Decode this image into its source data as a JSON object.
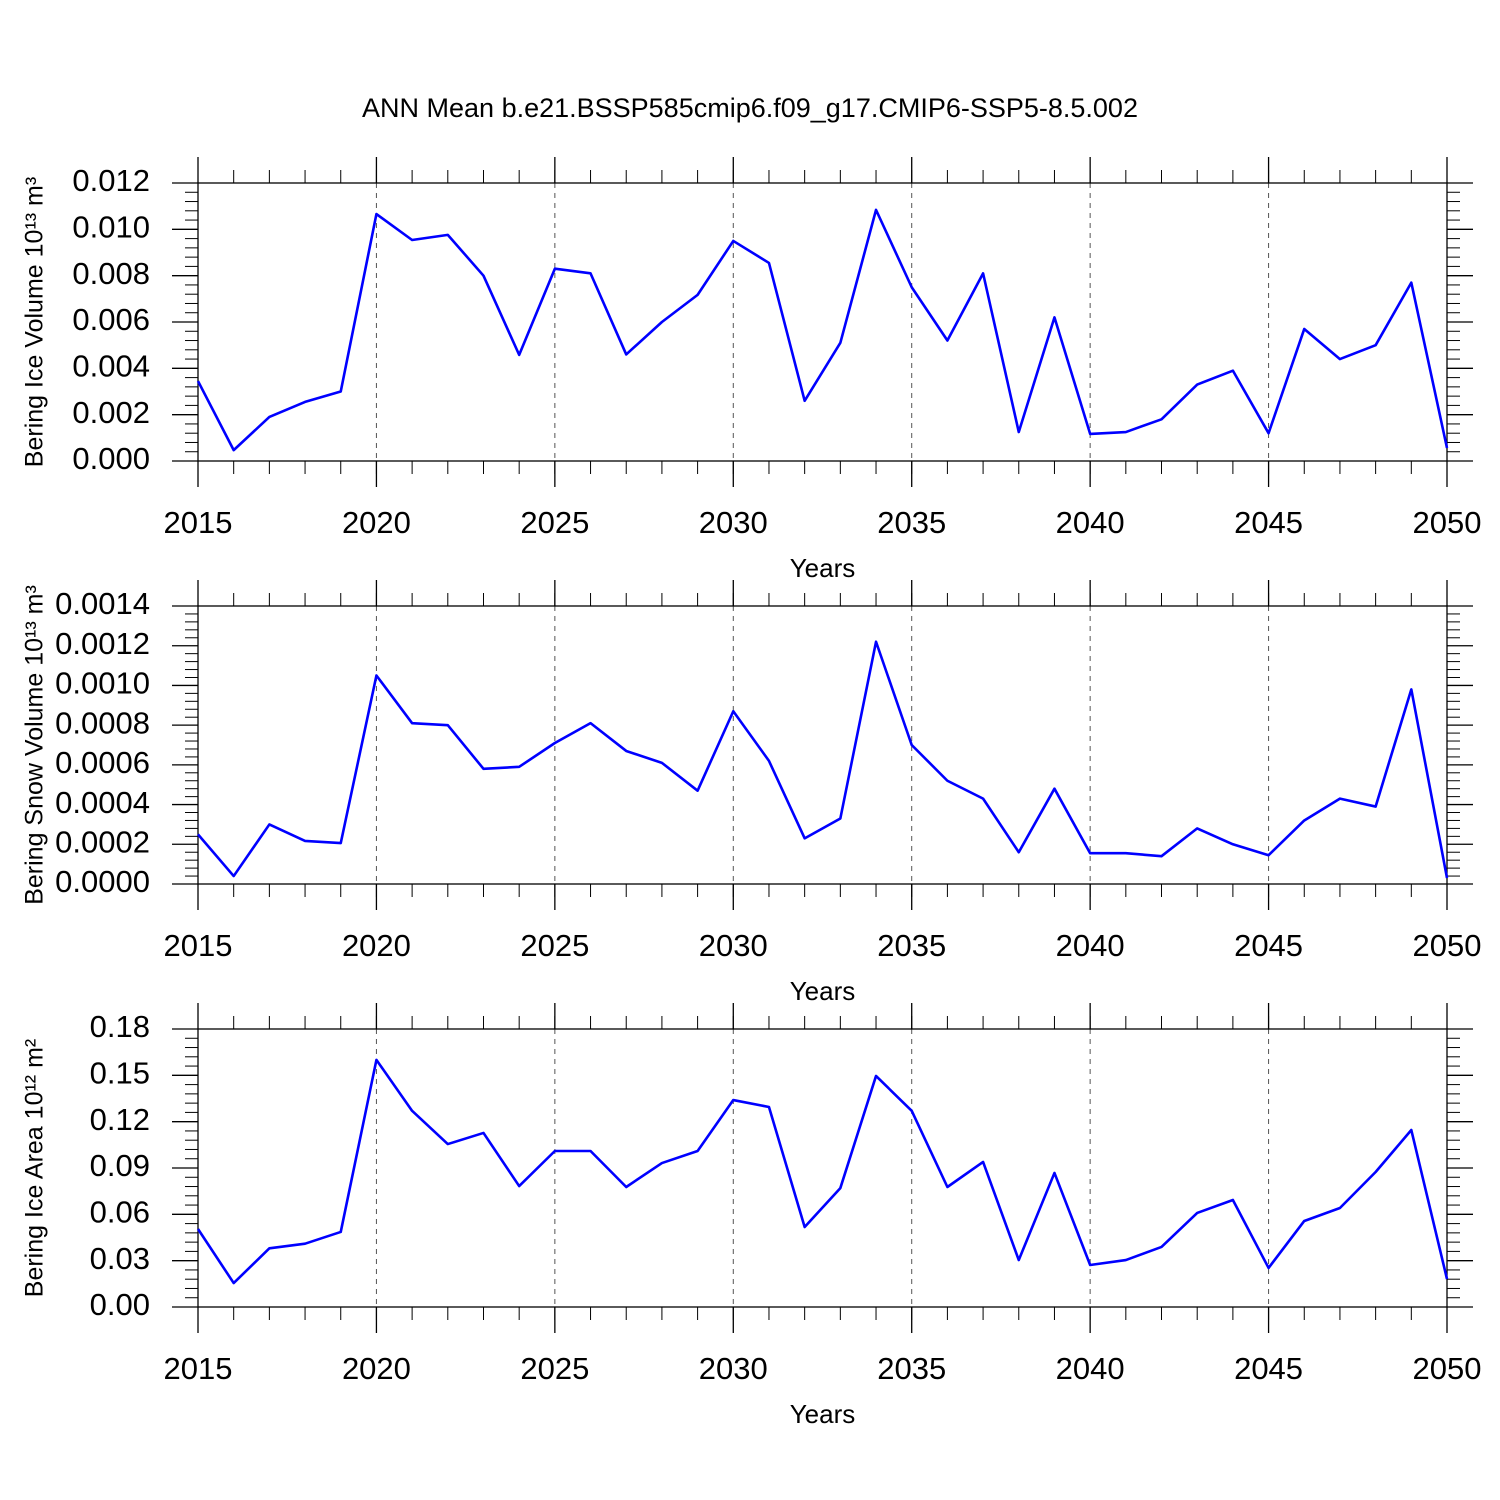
{
  "chart_data": [
    {
      "type": "line",
      "title": "ANN Mean b.e21.BSSP585cmip6.f09_g17.CMIP6-SSP5-8.5.002",
      "xlabel": "Years",
      "ylabel": "Bering Ice Volume 10¹³ m³",
      "x": [
        2015,
        2016,
        2017,
        2018,
        2019,
        2020,
        2021,
        2022,
        2023,
        2024,
        2025,
        2026,
        2027,
        2028,
        2029,
        2030,
        2031,
        2032,
        2033,
        2034,
        2035,
        2036,
        2037,
        2038,
        2039,
        2040,
        2041,
        2042,
        2043,
        2044,
        2045,
        2046,
        2047,
        2048,
        2049,
        2050
      ],
      "values": [
        0.00345,
        0.00047,
        0.0019,
        0.00255,
        0.003,
        0.01066,
        0.00954,
        0.00976,
        0.008,
        0.00458,
        0.0083,
        0.0081,
        0.0046,
        0.006,
        0.00717,
        0.0095,
        0.00855,
        0.0026,
        0.0051,
        0.01084,
        0.0075,
        0.0052,
        0.0081,
        0.00125,
        0.0062,
        0.00117,
        0.00125,
        0.0018,
        0.0033,
        0.0039,
        0.0012,
        0.0057,
        0.0044,
        0.005,
        0.0077,
        0.00056
      ],
      "color": "#0000ff",
      "xlim": [
        2015,
        2050
      ],
      "xticks": [
        2015,
        2020,
        2025,
        2030,
        2035,
        2040,
        2045,
        2050
      ],
      "ylim": [
        0,
        0.012
      ],
      "yticks": [
        {
          "value": 0,
          "label": "0.000"
        },
        0.002,
        0.004,
        0.006,
        0.008,
        {
          "value": 0.01,
          "label": "0.010"
        },
        0.012
      ],
      "xgrid": true
    },
    {
      "type": "line",
      "xlabel": "Years",
      "ylabel": "Bering Snow Volume 10¹³ m³",
      "x": [
        2015,
        2016,
        2017,
        2018,
        2019,
        2020,
        2021,
        2022,
        2023,
        2024,
        2025,
        2026,
        2027,
        2028,
        2029,
        2030,
        2031,
        2032,
        2033,
        2034,
        2035,
        2036,
        2037,
        2038,
        2039,
        2040,
        2041,
        2042,
        2043,
        2044,
        2045,
        2046,
        2047,
        2048,
        2049,
        2050
      ],
      "values": [
        0.00025,
        4e-05,
        0.0003,
        0.000217,
        0.000206,
        0.00105,
        0.00081,
        0.0008,
        0.00058,
        0.00059,
        0.00071,
        0.00081,
        0.00067,
        0.00061,
        0.00047,
        0.00087,
        0.00062,
        0.00023,
        0.00033,
        0.00122,
        0.0007,
        0.00052,
        0.00043,
        0.00016,
        0.00048,
        0.000155,
        0.000155,
        0.00014,
        0.00028,
        0.0002,
        0.000145,
        0.00032,
        0.00043,
        0.00039,
        0.00098,
        3e-05
      ],
      "color": "#0000ff",
      "xlim": [
        2015,
        2050
      ],
      "xticks": [
        2015,
        2020,
        2025,
        2030,
        2035,
        2040,
        2045,
        2050
      ],
      "ylim": [
        0,
        0.0014
      ],
      "yticks": [
        {
          "value": 0,
          "label": "0.0000"
        },
        0.0002,
        0.0004,
        0.0006,
        0.0008,
        {
          "value": 0.001,
          "label": "0.0010"
        },
        0.0012,
        0.0014
      ],
      "xgrid": true
    },
    {
      "type": "line",
      "xlabel": "Years",
      "ylabel": "Bering Ice Area 10¹² m²",
      "x": [
        2015,
        2016,
        2017,
        2018,
        2019,
        2020,
        2021,
        2022,
        2023,
        2024,
        2025,
        2026,
        2027,
        2028,
        2029,
        2030,
        2031,
        2032,
        2033,
        2034,
        2035,
        2036,
        2037,
        2038,
        2039,
        2040,
        2041,
        2042,
        2043,
        2044,
        2045,
        2046,
        2047,
        2048,
        2049,
        2050
      ],
      "values": [
        0.0505,
        0.0155,
        0.038,
        0.041,
        0.0486,
        0.16,
        0.127,
        0.1055,
        0.1127,
        0.0783,
        0.101,
        0.101,
        0.0777,
        0.0932,
        0.101,
        0.134,
        0.1295,
        0.0518,
        0.077,
        0.1496,
        0.127,
        0.0777,
        0.0939,
        0.0304,
        0.0868,
        0.0272,
        0.0304,
        0.0389,
        0.0609,
        0.0693,
        0.0253,
        0.0557,
        0.0641,
        0.0874,
        0.1146,
        0.0181
      ],
      "color": "#0000ff",
      "xlim": [
        2015,
        2050
      ],
      "xticks": [
        2015,
        2020,
        2025,
        2030,
        2035,
        2040,
        2045,
        2050
      ],
      "ylim": [
        0,
        0.18
      ],
      "yticks": [
        {
          "value": 0,
          "label": "0.00"
        },
        0.03,
        0.06,
        0.09,
        0.12,
        0.15,
        0.18
      ],
      "xgrid": true
    }
  ]
}
